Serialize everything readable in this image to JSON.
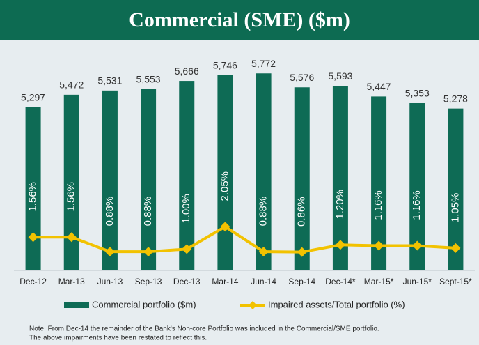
{
  "chart_data": {
    "type": "bar",
    "title": "Commercial (SME) ($m)",
    "categories": [
      "Dec-12",
      "Mar-13",
      "Jun-13",
      "Sep-13",
      "Dec-13",
      "Mar-14",
      "Jun-14",
      "Sep-14",
      "Dec-14*",
      "Mar-15*",
      "Jun-15*",
      "Sept-15*"
    ],
    "series": [
      {
        "name": "Commercial portfolio ($m)",
        "type": "bar",
        "color": "#0e6b55",
        "values": [
          5297,
          5472,
          5531,
          5553,
          5666,
          5746,
          5772,
          5576,
          5593,
          5447,
          5353,
          5278
        ],
        "value_labels": [
          "5,297",
          "5,472",
          "5,531",
          "5,553",
          "5,666",
          "5,746",
          "5,772",
          "5,576",
          "5,593",
          "5,447",
          "5,353",
          "5,278"
        ]
      },
      {
        "name": "Impaired assets/Total portfolio (%)",
        "type": "line",
        "axis": "y2",
        "color": "#f2c200",
        "values": [
          1.56,
          1.56,
          0.88,
          0.88,
          1.0,
          2.05,
          0.88,
          0.86,
          1.2,
          1.16,
          1.16,
          1.05
        ],
        "value_labels": [
          "1.56%",
          "1.56%",
          "0.88%",
          "0.88%",
          "1.00%",
          "2.05%",
          "0.88%",
          "0.86%",
          "1.20%",
          "1.16%",
          "1.16%",
          "1.05%"
        ]
      }
    ],
    "ylim": [
      3000,
      6000
    ],
    "y2lim": [
      0,
      10
    ],
    "notes": [
      "Note:  From Dec-14 the remainder of the Bank's Non-core Portfolio was included in the Commercial/SME portfolio.",
      "The  above impairments have been restated to reflect this."
    ]
  }
}
